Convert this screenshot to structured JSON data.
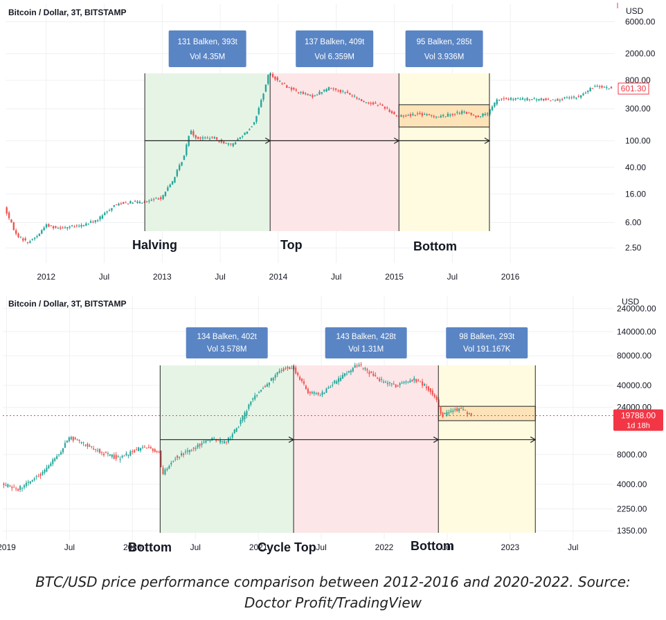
{
  "colors": {
    "green_zone": "#e6f4e6",
    "red_zone": "#fde6e8",
    "yellow_zone": "#fefbe0",
    "orange_box": "#fde3b8",
    "candle_up": "#26a69a",
    "candle_down": "#ef5350",
    "info_box": "#5a85c4",
    "price_tag": "#f23645",
    "grid": "#eef0f3"
  },
  "chart_data": [
    {
      "type": "candlestick",
      "title": "Bitcoin / Dollar, 3T, BITSTAMP",
      "yaxis_unit": "USD",
      "yscale": "log",
      "y_ticks": [
        "6000.00",
        "2000.00",
        "800.00",
        "300.00",
        "100.00",
        "40.00",
        "16.00",
        "6.00",
        "2.50"
      ],
      "y_tick_values": [
        6000,
        2000,
        800,
        300,
        100,
        40,
        16,
        6,
        2.5
      ],
      "x_ticks": [
        "2012",
        "Jul",
        "2013",
        "Jul",
        "2014",
        "Jul",
        "2015",
        "Jul",
        "2016"
      ],
      "x_tick_values": [
        2012.0,
        2012.5,
        2013.0,
        2013.5,
        2014.0,
        2014.5,
        2015.0,
        2015.5,
        2016.0
      ],
      "x_range": [
        2011.65,
        2016.9
      ],
      "y_range": [
        1.8,
        11000
      ],
      "last_price": "601.30",
      "last_price_value": 601.3,
      "zones": [
        {
          "start": 2012.85,
          "end": 2013.93,
          "color": "green",
          "info_title": "131 Balken, 393t",
          "info_vol": "Vol 4.35M"
        },
        {
          "start": 2013.93,
          "end": 2015.04,
          "color": "red",
          "info_title": "137 Balken, 409t",
          "info_vol": "Vol 6.359M"
        },
        {
          "start": 2015.04,
          "end": 2015.82,
          "color": "yellow",
          "info_title": "95 Balken, 285t",
          "info_vol": "Vol 3.936M"
        }
      ],
      "arrow_price": 100,
      "orange_box_range": [
        160,
        345
      ],
      "phase_labels": [
        "Halving",
        "Top",
        "Bottom"
      ],
      "series_anchors": [
        [
          2011.65,
          10
        ],
        [
          2011.75,
          4
        ],
        [
          2011.85,
          3
        ],
        [
          2011.95,
          4
        ],
        [
          2012.0,
          5.5
        ],
        [
          2012.1,
          5
        ],
        [
          2012.3,
          5.3
        ],
        [
          2012.45,
          6.5
        ],
        [
          2012.6,
          11
        ],
        [
          2012.7,
          12
        ],
        [
          2012.85,
          12
        ],
        [
          2013.0,
          14
        ],
        [
          2013.1,
          25
        ],
        [
          2013.2,
          60
        ],
        [
          2013.25,
          150
        ],
        [
          2013.3,
          110
        ],
        [
          2013.45,
          110
        ],
        [
          2013.6,
          85
        ],
        [
          2013.7,
          120
        ],
        [
          2013.8,
          180
        ],
        [
          2013.88,
          500
        ],
        [
          2013.93,
          1050
        ],
        [
          2014.0,
          800
        ],
        [
          2014.1,
          620
        ],
        [
          2014.2,
          520
        ],
        [
          2014.3,
          460
        ],
        [
          2014.45,
          620
        ],
        [
          2014.6,
          520
        ],
        [
          2014.75,
          380
        ],
        [
          2014.9,
          340
        ],
        [
          2015.04,
          230
        ],
        [
          2015.2,
          250
        ],
        [
          2015.4,
          230
        ],
        [
          2015.6,
          270
        ],
        [
          2015.72,
          230
        ],
        [
          2015.82,
          260
        ],
        [
          2015.9,
          420
        ],
        [
          2016.1,
          420
        ],
        [
          2016.4,
          410
        ],
        [
          2016.6,
          450
        ],
        [
          2016.75,
          680
        ],
        [
          2016.88,
          601
        ]
      ]
    },
    {
      "type": "candlestick",
      "title": "Bitcoin / Dollar, 3T, BITSTAMP",
      "yaxis_unit": "USD",
      "yscale": "log",
      "y_ticks": [
        "240000.00",
        "140000.00",
        "80000.00",
        "40000.00",
        "24000.00",
        "8000.00",
        "4000.00",
        "2250.00",
        "1350.00"
      ],
      "y_tick_values": [
        240000,
        140000,
        80000,
        40000,
        24000,
        8000,
        4000,
        2250,
        1350
      ],
      "x_ticks": [
        "2019",
        "Jul",
        "2020",
        "Jul",
        "2021",
        "Jul",
        "2022",
        "Jul",
        "2023",
        "Jul"
      ],
      "x_tick_values": [
        2019.0,
        2019.5,
        2020.0,
        2020.5,
        2021.0,
        2021.5,
        2022.0,
        2022.5,
        2023.0,
        2023.5
      ],
      "x_range": [
        2018.97,
        2023.82
      ],
      "y_range": [
        1250,
        320000
      ],
      "last_price": "19788.00",
      "last_price_value": 19788,
      "countdown": "1d 18h",
      "zones": [
        {
          "start": 2020.22,
          "end": 2021.28,
          "color": "green",
          "info_title": "134 Balken, 402t",
          "info_vol": "Vol 3.578M"
        },
        {
          "start": 2021.28,
          "end": 2022.43,
          "color": "red",
          "info_title": "143 Balken, 428t",
          "info_vol": "Vol 1.31M"
        },
        {
          "start": 2022.43,
          "end": 2023.2,
          "color": "yellow",
          "info_title": "98 Balken, 293t",
          "info_vol": "Vol 191.167K"
        }
      ],
      "arrow_price": 11300,
      "orange_box_range": [
        17600,
        24600
      ],
      "phase_labels": [
        "Bottom",
        "Cycle Top",
        "Bottom"
      ],
      "series_anchors": [
        [
          2018.97,
          4000
        ],
        [
          2019.1,
          3600
        ],
        [
          2019.3,
          5300
        ],
        [
          2019.45,
          9000
        ],
        [
          2019.5,
          12000
        ],
        [
          2019.6,
          10500
        ],
        [
          2019.75,
          8500
        ],
        [
          2019.9,
          7300
        ],
        [
          2020.1,
          9800
        ],
        [
          2020.22,
          8500
        ],
        [
          2020.24,
          5000
        ],
        [
          2020.35,
          7500
        ],
        [
          2020.5,
          9300
        ],
        [
          2020.6,
          11500
        ],
        [
          2020.75,
          10700
        ],
        [
          2020.85,
          15500
        ],
        [
          2020.95,
          28000
        ],
        [
          2021.1,
          45000
        ],
        [
          2021.2,
          58000
        ],
        [
          2021.28,
          62000
        ],
        [
          2021.4,
          35000
        ],
        [
          2021.5,
          32000
        ],
        [
          2021.65,
          47000
        ],
        [
          2021.8,
          66000
        ],
        [
          2021.95,
          47000
        ],
        [
          2022.1,
          39000
        ],
        [
          2022.25,
          46000
        ],
        [
          2022.35,
          38000
        ],
        [
          2022.43,
          29000
        ],
        [
          2022.46,
          19500
        ],
        [
          2022.55,
          22000
        ],
        [
          2022.62,
          23500
        ],
        [
          2022.7,
          19788
        ]
      ]
    }
  ],
  "caption_line1": "BTC/USD price performance comparison between 2012-2016 and 2020-2022. Source:",
  "caption_line2": "Doctor Profit/TradingView"
}
